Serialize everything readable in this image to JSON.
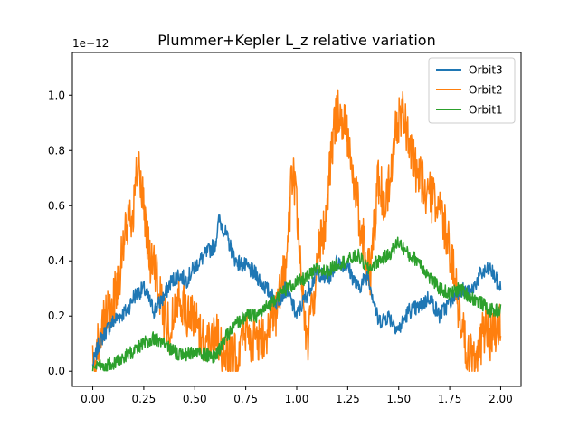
{
  "chart_data": {
    "type": "line",
    "title": "Plummer+Kepler L_z relative variation",
    "xlabel": "",
    "ylabel": "",
    "scale_label": "1e−12",
    "xlim": [
      -0.1,
      2.1
    ],
    "ylim": [
      -0.055,
      1.155
    ],
    "x_ticks": [
      0.0,
      0.25,
      0.5,
      0.75,
      1.0,
      1.25,
      1.5,
      1.75,
      2.0
    ],
    "x_tick_labels": [
      "0.00",
      "0.25",
      "0.50",
      "0.75",
      "1.00",
      "1.25",
      "1.50",
      "1.75",
      "2.00"
    ],
    "y_ticks": [
      0.0,
      0.2,
      0.4,
      0.6,
      0.8,
      1.0
    ],
    "y_tick_labels": [
      "0.0",
      "0.2",
      "0.4",
      "0.6",
      "0.8",
      "1.0"
    ],
    "grid": false,
    "legend_position": "upper-right",
    "series": [
      {
        "name": "Orbit3",
        "color": "#1f77b4",
        "amplitude": 0.03,
        "x": [
          0.0,
          0.03,
          0.06,
          0.1,
          0.13,
          0.17,
          0.2,
          0.25,
          0.3,
          0.35,
          0.38,
          0.42,
          0.46,
          0.5,
          0.55,
          0.6,
          0.62,
          0.65,
          0.7,
          0.75,
          0.8,
          0.85,
          0.9,
          0.95,
          1.0,
          1.05,
          1.1,
          1.15,
          1.2,
          1.25,
          1.3,
          1.35,
          1.4,
          1.45,
          1.5,
          1.55,
          1.6,
          1.65,
          1.7,
          1.75,
          1.8,
          1.85,
          1.9,
          1.95,
          2.0
        ],
        "y": [
          0.02,
          0.1,
          0.14,
          0.18,
          0.2,
          0.22,
          0.27,
          0.3,
          0.22,
          0.27,
          0.32,
          0.35,
          0.33,
          0.38,
          0.42,
          0.46,
          0.55,
          0.5,
          0.4,
          0.38,
          0.35,
          0.3,
          0.25,
          0.3,
          0.2,
          0.28,
          0.36,
          0.33,
          0.4,
          0.38,
          0.3,
          0.35,
          0.18,
          0.2,
          0.15,
          0.22,
          0.23,
          0.27,
          0.2,
          0.25,
          0.3,
          0.28,
          0.35,
          0.37,
          0.3
        ]
      },
      {
        "name": "Orbit2",
        "color": "#ff7f0e",
        "amplitude": 0.09,
        "x": [
          0.0,
          0.03,
          0.06,
          0.1,
          0.13,
          0.16,
          0.2,
          0.22,
          0.25,
          0.28,
          0.31,
          0.35,
          0.38,
          0.42,
          0.46,
          0.5,
          0.55,
          0.6,
          0.65,
          0.7,
          0.75,
          0.8,
          0.85,
          0.9,
          0.95,
          0.98,
          1.02,
          1.05,
          1.08,
          1.11,
          1.14,
          1.17,
          1.2,
          1.24,
          1.27,
          1.3,
          1.33,
          1.36,
          1.4,
          1.44,
          1.48,
          1.52,
          1.56,
          1.6,
          1.64,
          1.68,
          1.72,
          1.76,
          1.8,
          1.84,
          1.88,
          1.92,
          1.96,
          2.0
        ],
        "y": [
          0.02,
          0.12,
          0.18,
          0.25,
          0.35,
          0.5,
          0.6,
          0.75,
          0.6,
          0.4,
          0.35,
          0.2,
          0.15,
          0.3,
          0.2,
          0.2,
          0.1,
          0.15,
          0.05,
          0.05,
          0.15,
          0.1,
          0.15,
          0.2,
          0.4,
          0.75,
          0.4,
          0.08,
          0.25,
          0.45,
          0.55,
          0.8,
          0.95,
          0.9,
          0.75,
          0.6,
          0.45,
          0.35,
          0.7,
          0.6,
          0.85,
          0.95,
          0.8,
          0.7,
          0.65,
          0.6,
          0.55,
          0.4,
          0.2,
          0.05,
          0.05,
          0.15,
          0.12,
          0.2
        ]
      },
      {
        "name": "Orbit1",
        "color": "#2ca02c",
        "amplitude": 0.025,
        "x": [
          0.0,
          0.05,
          0.1,
          0.15,
          0.2,
          0.25,
          0.3,
          0.35,
          0.4,
          0.45,
          0.5,
          0.55,
          0.6,
          0.65,
          0.7,
          0.75,
          0.8,
          0.85,
          0.9,
          0.95,
          1.0,
          1.05,
          1.1,
          1.15,
          1.2,
          1.25,
          1.3,
          1.35,
          1.4,
          1.45,
          1.5,
          1.55,
          1.6,
          1.65,
          1.7,
          1.75,
          1.8,
          1.85,
          1.9,
          1.95,
          2.0
        ],
        "y": [
          0.01,
          0.02,
          0.03,
          0.05,
          0.07,
          0.1,
          0.12,
          0.1,
          0.07,
          0.06,
          0.07,
          0.06,
          0.05,
          0.12,
          0.17,
          0.2,
          0.2,
          0.23,
          0.27,
          0.3,
          0.32,
          0.34,
          0.37,
          0.36,
          0.39,
          0.4,
          0.42,
          0.37,
          0.4,
          0.42,
          0.47,
          0.42,
          0.4,
          0.34,
          0.3,
          0.28,
          0.3,
          0.27,
          0.25,
          0.22,
          0.22
        ]
      }
    ]
  }
}
